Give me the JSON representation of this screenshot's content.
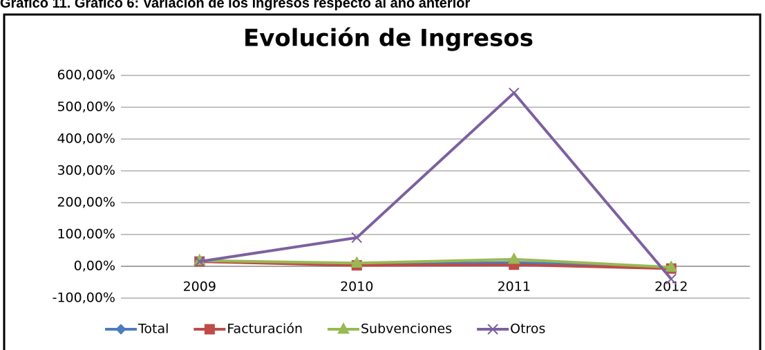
{
  "heading": "Gráfico 11. Gráfico 6: Variación de los ingresos respecto al año anterior",
  "chart_data": {
    "type": "line",
    "title": "Evolución de Ingresos",
    "categories": [
      "2009",
      "2010",
      "2011",
      "2012"
    ],
    "series": [
      {
        "name": "Total",
        "color": "#4a7ebb",
        "marker": "diamond",
        "values": [
          15,
          5,
          12,
          -5
        ]
      },
      {
        "name": "Facturación",
        "color": "#be4b48",
        "marker": "square",
        "values": [
          15,
          3,
          5,
          -7
        ]
      },
      {
        "name": "Subvenciones",
        "color": "#98b954",
        "marker": "triangle",
        "values": [
          18,
          10,
          22,
          -3
        ]
      },
      {
        "name": "Otros",
        "color": "#7d60a0",
        "marker": "x",
        "values": [
          15,
          90,
          545,
          -40
        ]
      }
    ],
    "ylim": [
      -100,
      600
    ],
    "yticks": [
      {
        "value": -100,
        "label": "-100,00%"
      },
      {
        "value": 0,
        "label": "0,00%"
      },
      {
        "value": 100,
        "label": "100,00%"
      },
      {
        "value": 200,
        "label": "200,00%"
      },
      {
        "value": 300,
        "label": "300,00%"
      },
      {
        "value": 400,
        "label": "400,00%"
      },
      {
        "value": 500,
        "label": "500,00%"
      },
      {
        "value": 600,
        "label": "600,00%"
      }
    ],
    "grid": true,
    "legend": "bottom"
  }
}
